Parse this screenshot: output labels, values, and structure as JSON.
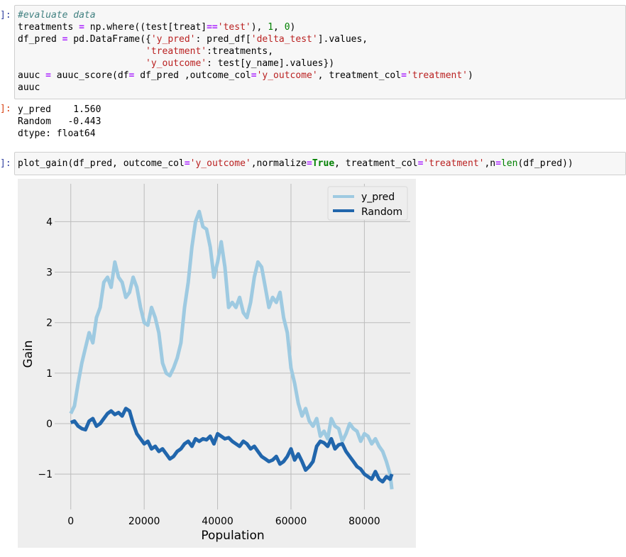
{
  "cells": {
    "c1": {
      "prompt": "]:",
      "code": [
        [
          {
            "t": "#evaluate data",
            "k": "comment"
          }
        ],
        [
          {
            "t": "treatments "
          },
          {
            "t": "=",
            "k": "op"
          },
          {
            "t": " np.where((test[treat]"
          },
          {
            "t": "==",
            "k": "op"
          },
          {
            "t": "'test'",
            "k": "str"
          },
          {
            "t": "), "
          },
          {
            "t": "1",
            "k": "num"
          },
          {
            "t": ", "
          },
          {
            "t": "0",
            "k": "num"
          },
          {
            "t": ")"
          }
        ],
        [
          {
            "t": "df_pred "
          },
          {
            "t": "=",
            "k": "op"
          },
          {
            "t": " pd.DataFrame({"
          },
          {
            "t": "'y_pred'",
            "k": "str"
          },
          {
            "t": ": pred_df["
          },
          {
            "t": "'delta_test'",
            "k": "str"
          },
          {
            "t": "].values,"
          }
        ],
        [
          {
            "t": "                       "
          },
          {
            "t": "'treatment'",
            "k": "str"
          },
          {
            "t": ":treatments,"
          }
        ],
        [
          {
            "t": "                       "
          },
          {
            "t": "'y_outcome'",
            "k": "str"
          },
          {
            "t": ": test[y_name].values})"
          }
        ],
        [
          {
            "t": "auuc "
          },
          {
            "t": "=",
            "k": "op"
          },
          {
            "t": " auuc_score(df"
          },
          {
            "t": "=",
            "k": "op"
          },
          {
            "t": " df_pred ,outcome_col"
          },
          {
            "t": "=",
            "k": "op"
          },
          {
            "t": "'y_outcome'",
            "k": "str"
          },
          {
            "t": ", treatment_col"
          },
          {
            "t": "=",
            "k": "op"
          },
          {
            "t": "'treatment'",
            "k": "str"
          },
          {
            "t": ")"
          }
        ],
        [
          {
            "t": "auuc"
          }
        ]
      ]
    },
    "o1": {
      "prompt": "]:",
      "lines": [
        "y_pred    1.560",
        "Random   -0.443",
        "dtype: float64"
      ]
    },
    "c2": {
      "prompt": "]:",
      "code": [
        [
          {
            "t": "plot_gain(df_pred, outcome_col"
          },
          {
            "t": "=",
            "k": "op"
          },
          {
            "t": "'y_outcome'",
            "k": "str"
          },
          {
            "t": ",normalize"
          },
          {
            "t": "=",
            "k": "op"
          },
          {
            "t": "True",
            "k": "kw"
          },
          {
            "t": ", treatment_col"
          },
          {
            "t": "=",
            "k": "op"
          },
          {
            "t": "'treatment'",
            "k": "str"
          },
          {
            "t": ",n"
          },
          {
            "t": "=",
            "k": "op"
          },
          {
            "t": "len",
            "k": "builtin"
          },
          {
            "t": "(df_pred))"
          }
        ]
      ]
    }
  },
  "colors": {
    "comment": "#408080",
    "op": "#aa22ff",
    "str": "#ba2121",
    "num": "#008000",
    "kw": "#008000",
    "builtin": "#008000",
    "plot_bg": "#eeeeee",
    "grid": "#bcbcbc",
    "y_pred": "#9ecae1",
    "random": "#2166ac"
  },
  "chart_data": {
    "type": "line",
    "xlabel": "Population",
    "ylabel": "Gain",
    "xlim": [
      -4400,
      92500
    ],
    "ylim": [
      -1.7,
      4.75
    ],
    "xticks": [
      0,
      20000,
      40000,
      60000,
      80000
    ],
    "xtick_labels": [
      "0",
      "20000",
      "40000",
      "60000",
      "80000"
    ],
    "yticks": [
      -1,
      0,
      1,
      2,
      3,
      4
    ],
    "ytick_labels": [
      "−1",
      "0",
      "1",
      "2",
      "3",
      "4"
    ],
    "grid": true,
    "legend_position": "top-right",
    "series": [
      {
        "name": "y_pred",
        "color": "#9ecae1",
        "x": [
          0,
          1000,
          2000,
          3000,
          4000,
          5000,
          6000,
          7000,
          8000,
          9000,
          10000,
          11000,
          12000,
          13000,
          14000,
          15000,
          16000,
          17000,
          18000,
          19000,
          20000,
          21000,
          22000,
          23000,
          24000,
          25000,
          26000,
          27000,
          28000,
          29000,
          30000,
          31000,
          32000,
          33000,
          34000,
          35000,
          36000,
          37000,
          38000,
          39000,
          40000,
          41000,
          42000,
          43000,
          44000,
          45000,
          46000,
          47000,
          48000,
          49000,
          50000,
          51000,
          52000,
          53000,
          54000,
          55000,
          56000,
          57000,
          58000,
          59000,
          60000,
          61000,
          62000,
          63000,
          64000,
          65000,
          66000,
          67000,
          68000,
          69000,
          70000,
          71000,
          72000,
          73000,
          74000,
          75000,
          76000,
          77000,
          78000,
          79000,
          80000,
          81000,
          82000,
          83000,
          84000,
          85000,
          86000,
          87000,
          87500
        ],
        "y": [
          0.2,
          0.35,
          0.8,
          1.2,
          1.5,
          1.8,
          1.6,
          2.1,
          2.3,
          2.8,
          2.9,
          2.7,
          3.2,
          2.9,
          2.8,
          2.5,
          2.6,
          2.9,
          2.7,
          2.3,
          2.0,
          1.95,
          2.3,
          2.1,
          1.8,
          1.2,
          1.0,
          0.95,
          1.1,
          1.3,
          1.6,
          2.3,
          2.8,
          3.5,
          4.0,
          4.2,
          3.9,
          3.85,
          3.5,
          2.9,
          3.2,
          3.6,
          3.1,
          2.3,
          2.4,
          2.3,
          2.5,
          2.2,
          2.1,
          2.4,
          2.9,
          3.2,
          3.1,
          2.7,
          2.3,
          2.5,
          2.4,
          2.6,
          2.1,
          1.8,
          1.1,
          0.8,
          0.4,
          0.15,
          0.3,
          0.05,
          -0.05,
          0.1,
          -0.25,
          -0.15,
          -0.3,
          0.1,
          -0.05,
          -0.1,
          -0.35,
          -0.2,
          0.0,
          -0.1,
          -0.15,
          -0.35,
          -0.2,
          -0.25,
          -0.4,
          -0.3,
          -0.45,
          -0.55,
          -0.75,
          -1.0,
          -1.3
        ]
      },
      {
        "name": "Random",
        "color": "#2166ac",
        "x": [
          0,
          1000,
          2000,
          3000,
          4000,
          5000,
          6000,
          7000,
          8000,
          9000,
          10000,
          11000,
          12000,
          13000,
          14000,
          15000,
          16000,
          17000,
          18000,
          19000,
          20000,
          21000,
          22000,
          23000,
          24000,
          25000,
          26000,
          27000,
          28000,
          29000,
          30000,
          31000,
          32000,
          33000,
          34000,
          35000,
          36000,
          37000,
          38000,
          39000,
          40000,
          41000,
          42000,
          43000,
          44000,
          45000,
          46000,
          47000,
          48000,
          49000,
          50000,
          51000,
          52000,
          53000,
          54000,
          55000,
          56000,
          57000,
          58000,
          59000,
          60000,
          61000,
          62000,
          63000,
          64000,
          65000,
          66000,
          67000,
          68000,
          69000,
          70000,
          71000,
          72000,
          73000,
          74000,
          75000,
          76000,
          77000,
          78000,
          79000,
          80000,
          81000,
          82000,
          83000,
          84000,
          85000,
          86000,
          87000,
          87500
        ],
        "y": [
          0.02,
          0.05,
          -0.05,
          -0.1,
          -0.12,
          0.05,
          0.1,
          -0.05,
          0.0,
          0.1,
          0.2,
          0.25,
          0.18,
          0.22,
          0.15,
          0.3,
          0.25,
          0.0,
          -0.2,
          -0.3,
          -0.4,
          -0.35,
          -0.5,
          -0.45,
          -0.55,
          -0.5,
          -0.6,
          -0.7,
          -0.65,
          -0.55,
          -0.5,
          -0.4,
          -0.35,
          -0.45,
          -0.3,
          -0.35,
          -0.3,
          -0.32,
          -0.25,
          -0.4,
          -0.2,
          -0.25,
          -0.3,
          -0.28,
          -0.35,
          -0.4,
          -0.45,
          -0.35,
          -0.4,
          -0.5,
          -0.45,
          -0.55,
          -0.65,
          -0.7,
          -0.75,
          -0.72,
          -0.65,
          -0.8,
          -0.75,
          -0.65,
          -0.5,
          -0.72,
          -0.6,
          -0.75,
          -0.92,
          -0.85,
          -0.75,
          -0.45,
          -0.35,
          -0.38,
          -0.45,
          -0.3,
          -0.5,
          -0.42,
          -0.4,
          -0.55,
          -0.65,
          -0.75,
          -0.85,
          -0.9,
          -1.0,
          -1.05,
          -1.1,
          -0.95,
          -1.1,
          -1.15,
          -1.05,
          -1.1,
          -1.0
        ]
      }
    ]
  }
}
